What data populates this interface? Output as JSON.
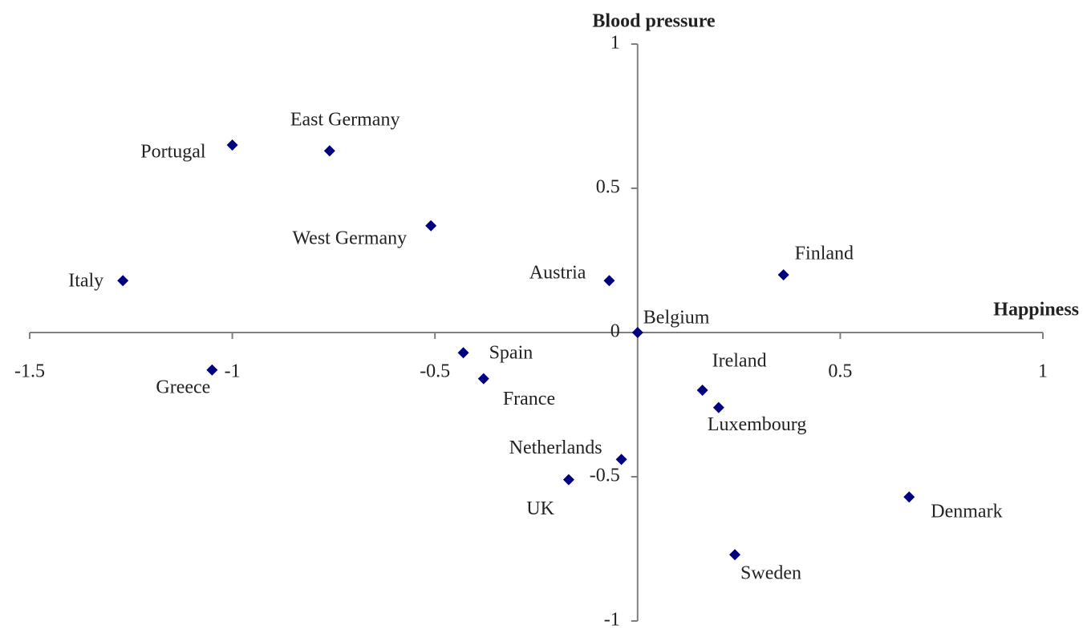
{
  "chart_data": {
    "type": "scatter",
    "xlabel": "Happiness",
    "ylabel": "Blood pressure",
    "labels": [
      "Portugal",
      "East Germany",
      "West Germany",
      "Italy",
      "Austria",
      "Finland",
      "Belgium",
      "Greece",
      "Spain",
      "France",
      "Ireland",
      "Luxembourg",
      "Netherlands",
      "UK",
      "Denmark",
      "Sweden"
    ],
    "x": [
      -1.0,
      -0.76,
      -0.51,
      -1.27,
      -0.07,
      0.36,
      0,
      -1.05,
      -0.43,
      -0.38,
      0.16,
      0.2,
      -0.04,
      -0.17,
      0.67,
      0.24
    ],
    "values": [
      0.65,
      0.63,
      0.37,
      0.18,
      0.18,
      0.2,
      0,
      -0.13,
      -0.07,
      -0.16,
      -0.2,
      -0.26,
      -0.44,
      -0.51,
      -0.57,
      -0.77
    ],
    "color": "#000080",
    "xlim": [
      -1.5,
      1
    ],
    "ylim": [
      -1,
      1
    ],
    "xticks": [
      -1.5,
      -1,
      -0.5,
      0.5,
      1
    ],
    "yticks": [
      -1,
      -0.5,
      0,
      0.5,
      1
    ],
    "grid": false
  }
}
